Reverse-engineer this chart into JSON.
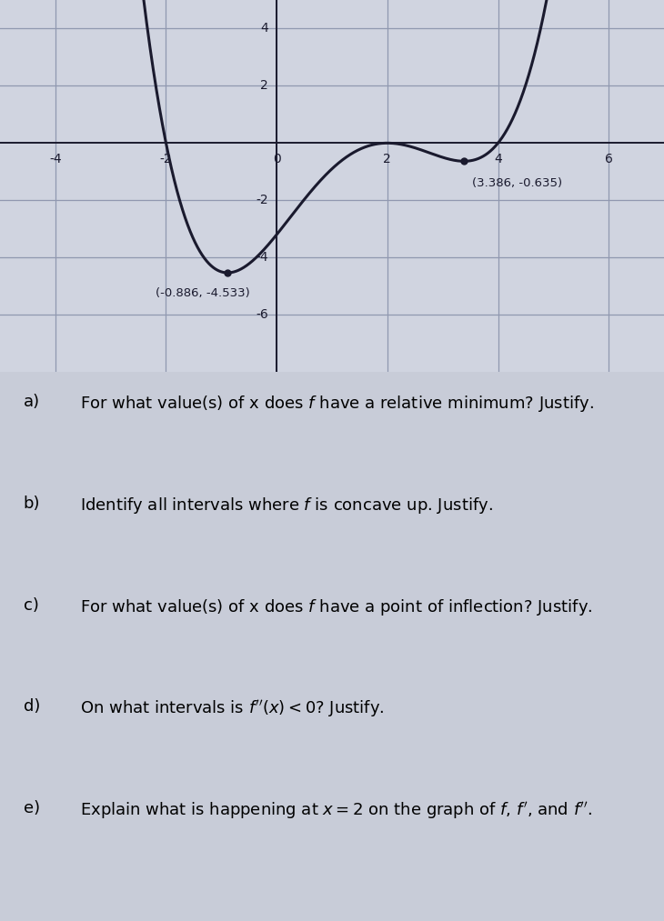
{
  "background_color": "#c8ccd8",
  "plot_bg_color": "#d0d4e0",
  "curve_color": "#1a1a2e",
  "curve_linewidth": 2.2,
  "xlim": [
    -5,
    7
  ],
  "ylim": [
    -8,
    5
  ],
  "xticks": [
    -4,
    -2,
    0,
    2,
    4,
    6
  ],
  "yticks": [
    -6,
    -4,
    -2,
    2,
    4
  ],
  "grid_color": "#9098b0",
  "grid_linewidth": 0.9,
  "axis_color": "#1a1a2e",
  "tick_label_fontsize": 10,
  "min1_x": -0.886,
  "min1_y": -4.533,
  "min1_label": "(-0.886, -4.533)",
  "min2_x": 3.386,
  "min2_y": -0.635,
  "min2_label": "(3.386, -0.635)",
  "annotation_fontsize": 9.5,
  "r1": -0.886,
  "r2": 2.0,
  "r3": 3.386,
  "question_items": [
    [
      "a)",
      "For what value(s) of x does ",
      "f",
      " have a relative minimum? Justify."
    ],
    [
      "b)",
      "Identify all intervals where ",
      "f",
      " is concave up. Justify."
    ],
    [
      "c)",
      "For what value(s) of x does ",
      "f",
      " have a point of inflection? Justify."
    ],
    [
      "d)",
      "On what intervals is ",
      "f''(x) < 0",
      "? Justify."
    ],
    [
      "e)",
      "Explain what is happening at x = 2 on the graph of ",
      "f, f', and f''",
      "."
    ]
  ]
}
